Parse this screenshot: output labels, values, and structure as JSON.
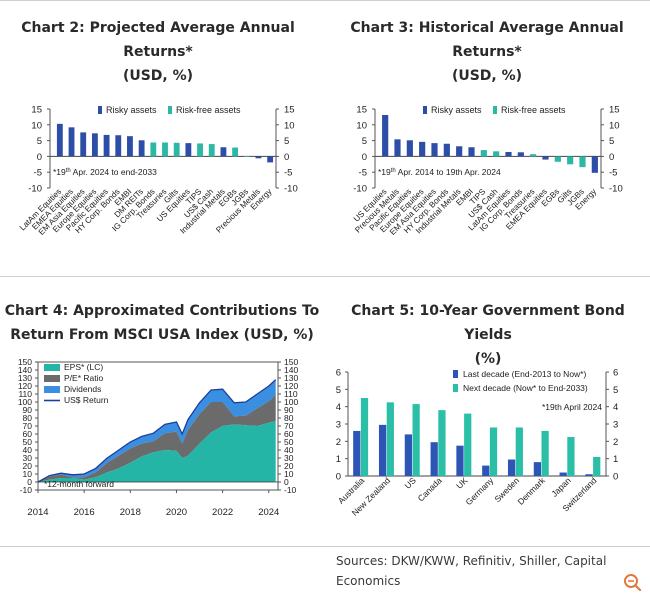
{
  "chart2": {
    "title_line1": "Chart 2: Projected Average Annual",
    "title_line2": "Returns*",
    "title_line3": "(USD, %)"
  },
  "chart3": {
    "title_line1": "Chart 3: Historical Average Annual",
    "title_line2": "Returns*",
    "title_line3": "(USD, %)"
  },
  "chart4": {
    "title_line1": "Chart 4: Approximated Contributions To",
    "title_line2": "Return From MSCI USA Index (USD, %)"
  },
  "chart5": {
    "title_line1": "Chart 5: 10-Year Government Bond Yields",
    "title_line2": "(%)"
  },
  "sources": "Sources: DKW/KWW, Refinitiv, Shiller, Capital Economics",
  "colors": {
    "risky": "#2d4ea6",
    "riskfree": "#2bb8a4",
    "eps": "#25b5a6",
    "pe": "#6b6b6b",
    "dividends": "#3b8fe0",
    "usd_return": "#1c3f9e",
    "last_decade": "#2d55b5",
    "next_decade": "#2bbfa8"
  },
  "chart_data": [
    {
      "type": "bar",
      "title": "Chart 2: Projected Average Annual Returns* (USD, %)",
      "legend": [
        "Risky assets",
        "Risk-free assets"
      ],
      "note_pre": "*19",
      "note_sup": "th",
      "note_post": " Apr. 2024 to end-2033",
      "ylim": [
        -10,
        15
      ],
      "yticks": [
        -10,
        -5,
        0,
        5,
        10,
        15
      ],
      "categories": [
        "LatAm Equities",
        "EMEA Equities",
        "EM Asia Equities",
        "Europe Equities",
        "Pacific Equities",
        "HY Corp. Bonds",
        "EMBI",
        "DM REITs",
        "IG Corp. Bonds",
        "Treasuries",
        "Gilts",
        "US Equities",
        "TIPS",
        "US$ Cash",
        "Industrial Metals",
        "EGBs",
        "JGBs",
        "Precious Metals",
        "Energy"
      ],
      "values": [
        10.3,
        9.2,
        7.6,
        7.3,
        6.8,
        6.7,
        6.4,
        5.1,
        4.4,
        4.4,
        4.3,
        4.2,
        4.1,
        3.9,
        2.9,
        2.8,
        0.1,
        -0.6,
        -1.9
      ],
      "groups": [
        "risky",
        "risky",
        "risky",
        "risky",
        "risky",
        "risky",
        "risky",
        "risky",
        "riskfree",
        "riskfree",
        "riskfree",
        "risky",
        "riskfree",
        "riskfree",
        "risky",
        "riskfree",
        "riskfree",
        "risky",
        "risky"
      ]
    },
    {
      "type": "bar",
      "title": "Chart 3: Historical Average Annual Returns* (USD, %)",
      "legend": [
        "Risky assets",
        "Risk-free assets"
      ],
      "note_pre": "*19",
      "note_sup": "th",
      "note_post": " Apr. 2014 to 19th Apr. 2024",
      "ylim": [
        -10,
        15
      ],
      "yticks": [
        -10,
        -5,
        0,
        5,
        10,
        15
      ],
      "categories": [
        "US Equities",
        "Precious Metals",
        "Pacific Equities",
        "Europe Equities",
        "EM Asia Equities",
        "HY Corp. Bonds",
        "Industrial Metals",
        "EMBI",
        "TIPS",
        "US$ Cash",
        "LatAm Equities",
        "IG Corp. Bonds",
        "Treasuries",
        "EMEA Equities",
        "EGBs",
        "Gilts",
        "JGBs",
        "Energy"
      ],
      "values": [
        13.1,
        5.4,
        5.1,
        4.6,
        4.2,
        4.0,
        3.2,
        2.9,
        2.0,
        1.6,
        1.4,
        1.3,
        0.7,
        -1.0,
        -1.7,
        -2.5,
        -3.4,
        -5.2
      ],
      "groups": [
        "risky",
        "risky",
        "risky",
        "risky",
        "risky",
        "risky",
        "risky",
        "risky",
        "riskfree",
        "riskfree",
        "risky",
        "risky",
        "riskfree",
        "risky",
        "riskfree",
        "riskfree",
        "riskfree",
        "risky"
      ]
    },
    {
      "type": "area",
      "title": "Chart 4: Approximated Contributions To Return From MSCI USA Index (USD, %)",
      "legend": [
        "EPS* (LC)",
        "P/E* Ratio",
        "Dividends",
        "US$ Return"
      ],
      "note": "*12-month forward",
      "ylim": [
        -10,
        150
      ],
      "yticks": [
        -10,
        0,
        10,
        20,
        30,
        40,
        50,
        60,
        70,
        80,
        90,
        100,
        110,
        120,
        130,
        140,
        150
      ],
      "xlim": [
        2014,
        2024.4
      ],
      "xticks": [
        "2014",
        "2016",
        "2018",
        "2020",
        "2022",
        "2024"
      ],
      "x": [
        2014.0,
        2014.5,
        2015.0,
        2015.5,
        2016.0,
        2016.5,
        2017.0,
        2017.5,
        2018.0,
        2018.5,
        2019.0,
        2019.5,
        2020.0,
        2020.25,
        2020.5,
        2021.0,
        2021.5,
        2022.0,
        2022.5,
        2023.0,
        2023.5,
        2024.0,
        2024.3
      ],
      "series": [
        {
          "name": "EPS* (LC)",
          "values": [
            0,
            3,
            5,
            5,
            3,
            6,
            12,
            17,
            24,
            32,
            37,
            40,
            39,
            30,
            33,
            48,
            62,
            70,
            72,
            71,
            70,
            74,
            76
          ]
        },
        {
          "name": "P/E* Ratio",
          "values": [
            0,
            4,
            4,
            1,
            3,
            6,
            12,
            16,
            18,
            16,
            14,
            21,
            24,
            18,
            32,
            37,
            38,
            30,
            10,
            12,
            22,
            27,
            33
          ]
        },
        {
          "name": "Dividends",
          "values": [
            0,
            1,
            2,
            3,
            4,
            5,
            6,
            7,
            8,
            9,
            10,
            11,
            12,
            12,
            13,
            14,
            15,
            16,
            17,
            17,
            18,
            19,
            19
          ]
        },
        {
          "name": "US$ Return",
          "values": [
            0,
            8,
            11,
            9,
            10,
            17,
            30,
            40,
            50,
            57,
            61,
            72,
            75,
            60,
            78,
            99,
            115,
            116,
            99,
            100,
            110,
            120,
            128
          ]
        }
      ]
    },
    {
      "type": "bar",
      "title": "Chart 5: 10-Year Government Bond Yields (%)",
      "legend": [
        "Last decade (End-2013 to Now*)",
        "Next decade (Now* to End-2033)"
      ],
      "note": "*19th April 2024",
      "ylim": [
        0,
        6
      ],
      "yticks": [
        0,
        1,
        2,
        3,
        4,
        5,
        6
      ],
      "categories": [
        "Australia",
        "New Zealand",
        "US",
        "Canada",
        "UK",
        "Germany",
        "Sweden",
        "Denmark",
        "Japan",
        "Switzerland"
      ],
      "series": [
        {
          "name": "Last decade (End-2013 to Now*)",
          "values": [
            2.6,
            2.95,
            2.4,
            1.95,
            1.75,
            0.6,
            0.95,
            0.8,
            0.2,
            0.1
          ]
        },
        {
          "name": "Next decade (Now* to End-2033)",
          "values": [
            4.5,
            4.25,
            4.15,
            3.8,
            3.6,
            2.8,
            2.8,
            2.6,
            2.25,
            1.1
          ]
        }
      ]
    }
  ]
}
